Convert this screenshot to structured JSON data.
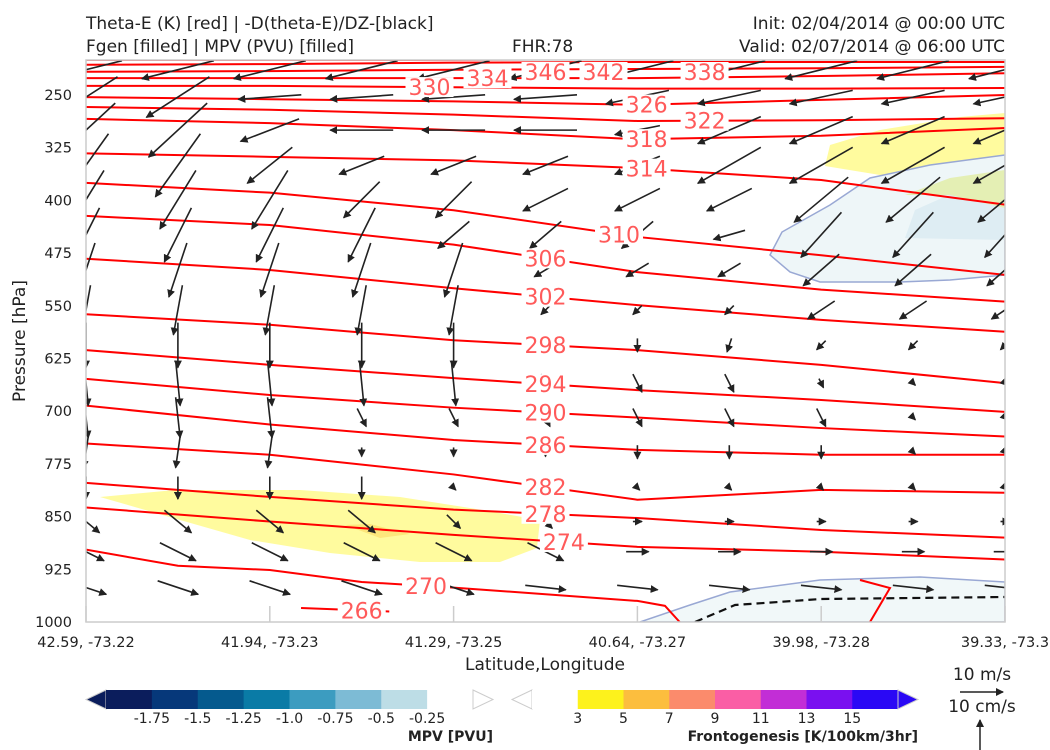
{
  "header": {
    "title_left_1": "Theta-E (K) [red] | -D(theta-E)/DZ-[black]",
    "title_left_2": "Fgen [filled] | MPV (PVU) [filled]",
    "fhr": "FHR:78",
    "init": "Init: 02/04/2014 @ 00:00 UTC",
    "valid": "Valid: 02/07/2014 @ 06:00 UTC"
  },
  "chart_data": {
    "type": "cross-section",
    "xlabel": "Latitude,Longitude",
    "ylabel": "Pressure [hPa]",
    "ylim": [
      1000,
      200
    ],
    "y_ticks": [
      "250",
      "325",
      "400",
      "475",
      "550",
      "625",
      "700",
      "775",
      "850",
      "925",
      "1000"
    ],
    "x_ticks": [
      "42.59, -73.22",
      "41.94, -73.23",
      "41.29, -73.25",
      "40.64, -73.27",
      "39.98, -73.28",
      "39.33, -73.3"
    ],
    "contours": [
      {
        "level": "346",
        "x": [
          0,
          1,
          2,
          3,
          4,
          5
        ],
        "p": [
          200,
          200,
          200,
          199,
          199,
          197
        ],
        "label_x": 2.5
      },
      {
        "level": "342",
        "x": [
          0,
          1,
          2,
          3,
          4,
          5
        ],
        "p": [
          207,
          206,
          204,
          203,
          203,
          203
        ],
        "label_x": 2.5
      },
      {
        "level": "338",
        "x": [
          0,
          1,
          2,
          3,
          4,
          5
        ],
        "p": [
          217,
          216,
          214,
          213,
          212,
          210
        ],
        "label_x": 3.05
      },
      {
        "level": "334",
        "x": [
          0,
          1,
          2,
          3,
          4,
          5
        ],
        "p": [
          226,
          226,
          226,
          226,
          223,
          219
        ],
        "label_x": 2.5
      },
      {
        "level": "330",
        "x": [
          0,
          1,
          2,
          3,
          4,
          5
        ],
        "p": [
          237,
          237,
          239,
          241,
          241,
          240
        ],
        "label_x": 2.5
      },
      {
        "level": "326",
        "x": [
          0,
          1,
          2,
          3,
          4,
          5
        ],
        "p": [
          253,
          256,
          259,
          264,
          257,
          250
        ],
        "label_x": 3.05
      },
      {
        "level": "322",
        "x": [
          0,
          1,
          2,
          3,
          4,
          5
        ],
        "p": [
          267,
          271,
          278,
          287,
          286,
          283
        ],
        "label_x": 3.05
      },
      {
        "level": "318",
        "x": [
          0,
          1,
          2,
          3,
          4,
          5
        ],
        "p": [
          284,
          290,
          300,
          313,
          308,
          297
        ],
        "label_x": 3.05
      },
      {
        "level": "314",
        "x": [
          0,
          1,
          2,
          3,
          4,
          5
        ],
        "p": [
          333,
          338,
          343,
          354,
          371,
          406
        ],
        "label_x": 3.05
      },
      {
        "level": "310",
        "x": [
          0,
          1,
          2,
          3,
          4,
          5
        ],
        "p": [
          375,
          389,
          414,
          452,
          478,
          506
        ],
        "label_x": 2.9
      },
      {
        "level": "306",
        "x": [
          0,
          1,
          2,
          3,
          4,
          5
        ],
        "p": [
          422,
          435,
          463,
          502,
          527,
          544
        ],
        "label_x": 2.5
      },
      {
        "level": "302",
        "x": [
          0,
          1,
          2,
          3,
          4,
          5
        ],
        "p": [
          483,
          499,
          525,
          549,
          570,
          587
        ],
        "label_x": 2.5
      },
      {
        "level": "298",
        "x": [
          0,
          1,
          2,
          3,
          4,
          5
        ],
        "p": [
          562,
          577,
          599,
          613,
          634,
          660
        ],
        "label_x": 2.5
      },
      {
        "level": "294",
        "x": [
          0,
          1,
          2,
          3,
          4,
          5
        ],
        "p": [
          613,
          634,
          653,
          670,
          684,
          701
        ],
        "label_x": 2.5
      },
      {
        "level": "290",
        "x": [
          0,
          1,
          2,
          3,
          4,
          5
        ],
        "p": [
          654,
          677,
          695,
          709,
          724,
          736
        ],
        "label_x": 2.5
      },
      {
        "level": "286",
        "x": [
          0,
          1,
          2,
          3,
          4,
          5
        ],
        "p": [
          692,
          719,
          741,
          755,
          762,
          762
        ],
        "label_x": 2.5
      },
      {
        "level": "282",
        "x": [
          0,
          1,
          2,
          3,
          4,
          5
        ],
        "p": [
          746,
          762,
          790,
          826,
          812,
          816
        ],
        "label_x": 2.5
      },
      {
        "level": "278",
        "x": [
          0,
          1,
          2,
          3,
          4,
          5
        ],
        "p": [
          802,
          822,
          840,
          852,
          869,
          880
        ],
        "label_x": 2.5
      },
      {
        "level": "274",
        "x": [
          0,
          1,
          2,
          3,
          4,
          5
        ],
        "p": [
          837,
          857,
          876,
          893,
          900,
          911
        ],
        "label_x": 2.6
      },
      {
        "level": "270",
        "x": [
          0,
          0.5,
          1,
          1.5,
          2,
          3,
          3.15,
          3.23
        ],
        "p": [
          897,
          920,
          926,
          943,
          951,
          970,
          977,
          1000
        ],
        "label_x": 1.85
      },
      {
        "level": "266",
        "x": [
          1.17,
          1.65
        ],
        "p": [
          980,
          985
        ],
        "label_x": 1.5
      }
    ],
    "wind_columns": 11,
    "wind_rows": [
      {
        "p": 214,
        "u": [
          -16,
          -16,
          -16,
          -16,
          -16,
          -16,
          -16,
          -16,
          -16,
          -16,
          -16
        ],
        "w": [
          -4,
          -4,
          -4,
          -4,
          -4,
          -4,
          -4,
          -4,
          -4,
          -4,
          -4
        ]
      },
      {
        "p": 253,
        "u": [
          -14,
          -14,
          -14,
          -14,
          -14,
          -14,
          -14,
          -14,
          -14,
          -14,
          -14
        ],
        "w": [
          -9,
          -9,
          -1,
          -1,
          -1,
          -1,
          -3,
          -3,
          -3,
          -3,
          -3
        ]
      },
      {
        "p": 300,
        "u": [
          -13,
          -13,
          -13,
          -14,
          -14,
          -14,
          -10,
          -14,
          -14,
          -14,
          -14
        ],
        "w": [
          -12,
          -12,
          -5,
          0,
          0,
          0,
          -2,
          -6,
          -6,
          -6,
          -6
        ]
      },
      {
        "p": 350,
        "u": [
          -10,
          -10,
          -10,
          -10,
          -10,
          -10,
          -10,
          -14,
          -14,
          -14,
          -14
        ],
        "w": [
          -14,
          -14,
          -8,
          -4,
          -4,
          -4,
          -4,
          -8,
          -8,
          -8,
          -8
        ]
      },
      {
        "p": 399,
        "u": [
          -8,
          -8,
          -8,
          -8,
          -8,
          -10,
          -10,
          -10,
          -12,
          -12,
          -12
        ],
        "w": [
          -13,
          -13,
          -13,
          -8,
          -8,
          -5,
          -5,
          -5,
          -10,
          -10,
          -10
        ]
      },
      {
        "p": 449,
        "u": [
          -6,
          -6,
          -6,
          -6,
          -7,
          -7,
          -7,
          -7,
          -9,
          -9,
          -9
        ],
        "w": [
          -12,
          -12,
          -12,
          -12,
          -6,
          -6,
          -6,
          -2,
          -10,
          -10,
          -10
        ]
      },
      {
        "p": 499,
        "u": [
          -4,
          -4,
          -4,
          -4,
          -4,
          -5,
          -5,
          -5,
          -8,
          -8,
          -8
        ],
        "w": [
          -12,
          -12,
          -12,
          -12,
          -12,
          -3,
          -3,
          -3,
          -7,
          -7,
          -7
        ]
      },
      {
        "p": 556,
        "u": [
          -2,
          -2,
          -2,
          -2,
          -2,
          -2,
          -2,
          -2,
          -6,
          -6,
          -6
        ],
        "w": [
          -11,
          -11,
          -11,
          -11,
          -11,
          -2,
          -2,
          -2,
          -4,
          -4,
          -4
        ]
      },
      {
        "p": 606,
        "u": [
          0,
          0,
          0,
          0,
          0,
          0,
          0,
          -1,
          -2,
          -2,
          -2
        ],
        "w": [
          -10,
          -10,
          -10,
          -10,
          -10,
          -3,
          -3,
          -3,
          -2,
          -2,
          -2
        ]
      },
      {
        "p": 660,
        "u": [
          1,
          1,
          1,
          1,
          1,
          2,
          2,
          2,
          1,
          1,
          1
        ],
        "w": [
          -10,
          -10,
          -10,
          -10,
          -10,
          -4,
          -4,
          -4,
          -2,
          -1,
          -1
        ]
      },
      {
        "p": 709,
        "u": [
          1,
          1,
          1,
          2,
          2,
          2,
          2,
          2,
          2,
          1,
          1
        ],
        "w": [
          -9,
          -9,
          -9,
          -4,
          -4,
          -4,
          -4,
          -4,
          -4,
          -1,
          -1
        ]
      },
      {
        "p": 758,
        "u": [
          -1,
          -1,
          -1,
          0,
          0,
          0,
          0,
          0,
          0,
          1,
          1
        ],
        "w": [
          -7,
          -7,
          -7,
          -2,
          -2,
          -2,
          -3,
          -3,
          -3,
          -1,
          -1
        ]
      },
      {
        "p": 809,
        "u": [
          0,
          0,
          0,
          0,
          1,
          1,
          1,
          1,
          1,
          1,
          1
        ],
        "w": [
          -5,
          -5,
          -5,
          -5,
          -1,
          -1,
          -1,
          -1,
          -1,
          -1,
          -1
        ]
      },
      {
        "p": 857,
        "u": [
          6,
          6,
          6,
          6,
          3,
          3,
          2,
          2,
          2,
          2,
          2
        ],
        "w": [
          -5,
          -5,
          -5,
          -5,
          -3,
          -3,
          0,
          0,
          0,
          0,
          0
        ]
      },
      {
        "p": 900,
        "u": [
          8,
          8,
          8,
          8,
          8,
          8,
          5,
          5,
          5,
          5,
          5
        ],
        "w": [
          -4,
          -4,
          -4,
          -4,
          -4,
          -4,
          0,
          0,
          0,
          0,
          0
        ]
      },
      {
        "p": 951,
        "u": [
          9,
          9,
          9,
          9,
          9,
          9,
          9,
          9,
          9,
          9,
          9
        ],
        "w": [
          -3,
          -3,
          -3,
          -3,
          -3,
          -1,
          -1,
          -1,
          -1,
          -1,
          -1
        ]
      }
    ],
    "mpv_colorbar": {
      "title": "MPV [PVU]",
      "ticks": [
        "-1.75",
        "-1.5",
        "-1.25",
        "-1.0",
        "-0.75",
        "-0.5",
        "-0.25"
      ],
      "colors": [
        "#0b1d5c",
        "#06387a",
        "#055a8e",
        "#0a7ba6",
        "#3c9cc0",
        "#7dbbd5",
        "#bddde6",
        "#ffffff"
      ]
    },
    "fgen_colorbar": {
      "title": "Frontogenesis [K/100km/3hr]",
      "ticks": [
        "3",
        "5",
        "7",
        "9",
        "11",
        "13",
        "15"
      ],
      "colors": [
        "#ffffff",
        "#fdf21c",
        "#fcbe3e",
        "#fb8b6c",
        "#fa5ea5",
        "#c22ed6",
        "#7a10f0",
        "#2a08f5"
      ]
    },
    "vector_legend": {
      "horizontal": "10 m/s",
      "vertical": "10 cm/s"
    },
    "line_color": "#ff0000",
    "label_color": "#ff5a5a"
  }
}
